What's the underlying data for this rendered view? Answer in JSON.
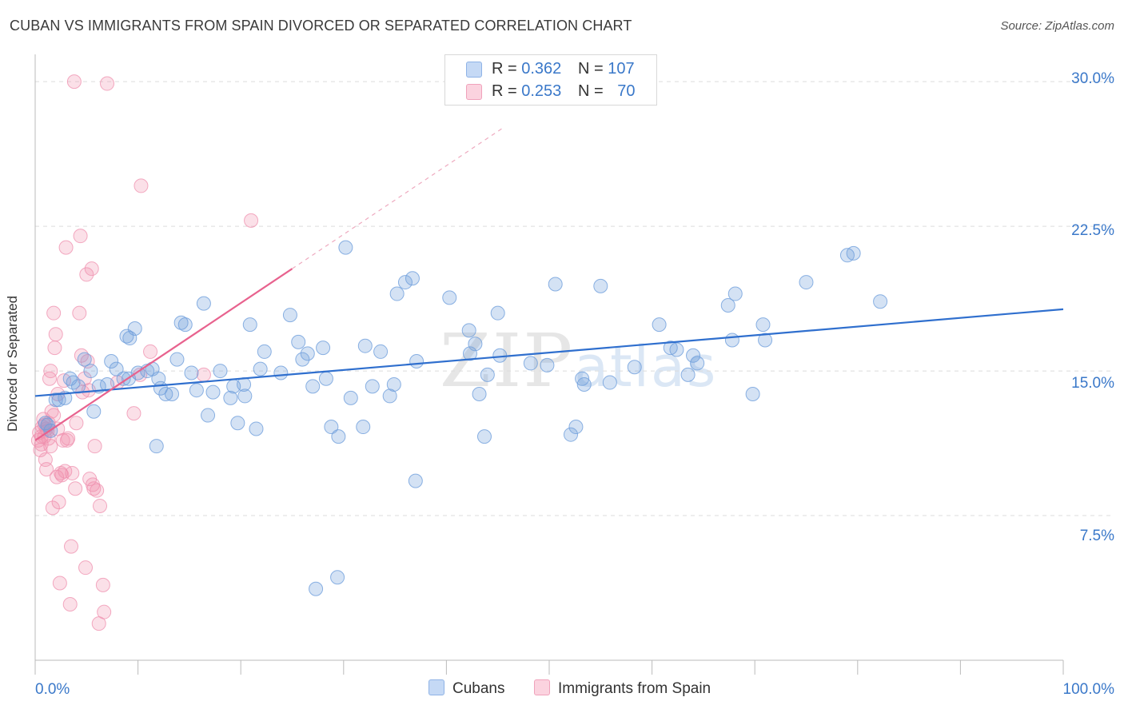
{
  "header": {
    "title": "CUBAN VS IMMIGRANTS FROM SPAIN DIVORCED OR SEPARATED CORRELATION CHART",
    "source": "Source: ZipAtlas.com"
  },
  "legend": {
    "rows": [
      {
        "r_label": "R = ",
        "r_value": "0.362",
        "n_label": "N = ",
        "n_value": "107",
        "color": "#a9c6ee"
      },
      {
        "r_label": "R = ",
        "r_value": "0.253",
        "n_label": "N = ",
        "n_value": "70",
        "color": "#f5b8cc"
      }
    ]
  },
  "bottom_legend": {
    "items": [
      {
        "label": "Cubans",
        "color": "#a9c6ee"
      },
      {
        "label": "Immigrants from Spain",
        "color": "#f5b8cc"
      }
    ]
  },
  "watermark": {
    "zip": "ZIP",
    "atlas": "atlas"
  },
  "chart_data": {
    "type": "scatter",
    "title": "CUBAN VS IMMIGRANTS FROM SPAIN DIVORCED OR SEPARATED CORRELATION CHART",
    "ylabel": "Divorced or Separated",
    "xlabel": "",
    "xlim": [
      0,
      100
    ],
    "ylim": [
      0,
      31
    ],
    "x_tick_labels": [
      "0.0%",
      "100.0%"
    ],
    "y_ticks": [
      7.5,
      15.0,
      22.5,
      30.0
    ],
    "y_tick_labels": [
      "7.5%",
      "15.0%",
      "22.5%",
      "30.0%"
    ],
    "grid": true,
    "legend_position": "top-center",
    "colors": {
      "cubans": "#6f9fdc",
      "spain": "#ef8fae",
      "cubans_line": "#2f6fce",
      "spain_line": "#e8628e"
    },
    "series": [
      {
        "name": "Cubans",
        "trend": {
          "x0": 0,
          "y0": 13.7,
          "x1": 100,
          "y1": 18.2
        },
        "points": [
          [
            1.0,
            12.3
          ],
          [
            1.2,
            12.2
          ],
          [
            1.5,
            11.9
          ],
          [
            2.0,
            13.5
          ],
          [
            2.9,
            13.6
          ],
          [
            3.4,
            14.6
          ],
          [
            3.7,
            14.4
          ],
          [
            4.8,
            15.6
          ],
          [
            5.4,
            15.0
          ],
          [
            5.7,
            12.9
          ],
          [
            6.2,
            14.2
          ],
          [
            7.0,
            14.3
          ],
          [
            7.4,
            15.5
          ],
          [
            7.9,
            15.1
          ],
          [
            8.6,
            14.6
          ],
          [
            8.9,
            16.8
          ],
          [
            9.2,
            16.7
          ],
          [
            9.7,
            17.2
          ],
          [
            10.0,
            14.9
          ],
          [
            10.9,
            15.0
          ],
          [
            11.4,
            15.1
          ],
          [
            11.8,
            11.1
          ],
          [
            12.2,
            14.1
          ],
          [
            12.7,
            13.8
          ],
          [
            13.3,
            13.8
          ],
          [
            13.8,
            15.6
          ],
          [
            14.2,
            17.5
          ],
          [
            14.6,
            17.4
          ],
          [
            15.2,
            14.9
          ],
          [
            15.7,
            14.0
          ],
          [
            16.4,
            18.5
          ],
          [
            16.8,
            12.7
          ],
          [
            17.3,
            13.9
          ],
          [
            18.0,
            15.0
          ],
          [
            19.0,
            13.6
          ],
          [
            19.3,
            14.2
          ],
          [
            19.7,
            12.3
          ],
          [
            20.4,
            13.7
          ],
          [
            20.9,
            17.4
          ],
          [
            21.5,
            12.0
          ],
          [
            21.9,
            15.1
          ],
          [
            22.3,
            16.0
          ],
          [
            23.9,
            14.9
          ],
          [
            24.8,
            17.9
          ],
          [
            25.6,
            16.5
          ],
          [
            26.0,
            15.6
          ],
          [
            26.5,
            15.9
          ],
          [
            27.0,
            14.2
          ],
          [
            28.0,
            16.2
          ],
          [
            28.3,
            14.6
          ],
          [
            28.8,
            12.1
          ],
          [
            29.5,
            11.6
          ],
          [
            29.4,
            4.3
          ],
          [
            30.2,
            21.4
          ],
          [
            30.7,
            13.6
          ],
          [
            32.1,
            16.3
          ],
          [
            31.9,
            12.1
          ],
          [
            32.8,
            14.2
          ],
          [
            33.6,
            16.0
          ],
          [
            34.5,
            13.7
          ],
          [
            34.9,
            14.3
          ],
          [
            35.2,
            19.0
          ],
          [
            36.0,
            19.6
          ],
          [
            36.7,
            19.8
          ],
          [
            37.0,
            9.3
          ],
          [
            37.1,
            15.5
          ],
          [
            40.3,
            18.8
          ],
          [
            42.2,
            17.1
          ],
          [
            42.3,
            15.9
          ],
          [
            42.8,
            16.4
          ],
          [
            43.2,
            13.8
          ],
          [
            43.7,
            11.6
          ],
          [
            44.0,
            14.8
          ],
          [
            45.0,
            18.0
          ],
          [
            45.2,
            15.8
          ],
          [
            48.2,
            15.4
          ],
          [
            49.8,
            15.3
          ],
          [
            50.6,
            19.5
          ],
          [
            52.1,
            11.7
          ],
          [
            52.6,
            12.1
          ],
          [
            53.2,
            14.6
          ],
          [
            53.4,
            14.3
          ],
          [
            55.0,
            19.4
          ],
          [
            55.9,
            14.4
          ],
          [
            58.3,
            15.2
          ],
          [
            60.7,
            17.4
          ],
          [
            61.8,
            16.2
          ],
          [
            62.4,
            16.1
          ],
          [
            63.5,
            14.8
          ],
          [
            64.0,
            15.8
          ],
          [
            64.4,
            15.4
          ],
          [
            67.4,
            18.4
          ],
          [
            67.8,
            16.6
          ],
          [
            68.1,
            19.0
          ],
          [
            69.8,
            13.8
          ],
          [
            70.8,
            17.4
          ],
          [
            71.0,
            16.6
          ],
          [
            75.0,
            19.6
          ],
          [
            79.0,
            21.0
          ],
          [
            79.6,
            21.1
          ],
          [
            82.2,
            18.6
          ],
          [
            27.3,
            3.7
          ],
          [
            20.3,
            14.3
          ],
          [
            12.0,
            14.6
          ],
          [
            9.1,
            14.6
          ],
          [
            4.2,
            14.2
          ],
          [
            2.3,
            13.5
          ]
        ]
      },
      {
        "name": "Immigrants from Spain",
        "trend": {
          "x0": 0,
          "y0": 11.4,
          "x1": 25,
          "y1": 20.3,
          "dash_to": {
            "x": 45.5,
            "y": 27.6
          }
        },
        "points": [
          [
            0.3,
            11.4
          ],
          [
            0.4,
            11.8
          ],
          [
            0.5,
            10.9
          ],
          [
            0.6,
            11.2
          ],
          [
            0.7,
            12.1
          ],
          [
            0.8,
            12.5
          ],
          [
            0.9,
            11.6
          ],
          [
            1.0,
            10.4
          ],
          [
            1.1,
            9.9
          ],
          [
            1.2,
            11.9
          ],
          [
            1.3,
            12.3
          ],
          [
            1.4,
            14.6
          ],
          [
            1.5,
            15.0
          ],
          [
            1.6,
            12.9
          ],
          [
            1.7,
            7.9
          ],
          [
            1.8,
            18.0
          ],
          [
            1.9,
            16.2
          ],
          [
            2.0,
            16.9
          ],
          [
            2.1,
            9.5
          ],
          [
            2.2,
            13.8
          ],
          [
            2.3,
            8.2
          ],
          [
            2.4,
            4.0
          ],
          [
            2.5,
            9.7
          ],
          [
            2.6,
            9.6
          ],
          [
            2.7,
            11.4
          ],
          [
            2.8,
            14.5
          ],
          [
            2.9,
            9.8
          ],
          [
            3.0,
            21.4
          ],
          [
            3.1,
            11.4
          ],
          [
            3.2,
            11.5
          ],
          [
            3.4,
            2.9
          ],
          [
            3.5,
            5.9
          ],
          [
            3.6,
            9.7
          ],
          [
            3.8,
            30.0
          ],
          [
            3.9,
            8.9
          ],
          [
            4.0,
            12.3
          ],
          [
            4.3,
            18.0
          ],
          [
            4.4,
            22.0
          ],
          [
            4.5,
            15.8
          ],
          [
            4.6,
            13.9
          ],
          [
            4.8,
            14.6
          ],
          [
            4.9,
            4.8
          ],
          [
            5.0,
            20.0
          ],
          [
            5.1,
            15.5
          ],
          [
            5.2,
            14.0
          ],
          [
            5.3,
            9.4
          ],
          [
            5.5,
            20.3
          ],
          [
            5.6,
            9.1
          ],
          [
            5.7,
            8.9
          ],
          [
            5.8,
            11.1
          ],
          [
            6.0,
            8.8
          ],
          [
            6.2,
            1.9
          ],
          [
            6.3,
            8.0
          ],
          [
            6.6,
            3.9
          ],
          [
            6.7,
            2.5
          ],
          [
            7.0,
            29.9
          ],
          [
            8.0,
            14.4
          ],
          [
            9.6,
            12.8
          ],
          [
            10.2,
            14.8
          ],
          [
            10.3,
            24.6
          ],
          [
            11.2,
            16.0
          ],
          [
            16.4,
            14.8
          ],
          [
            21.0,
            22.8
          ],
          [
            1.5,
            11.1
          ],
          [
            0.9,
            12.2
          ],
          [
            1.1,
            12.0
          ],
          [
            0.6,
            11.6
          ],
          [
            1.8,
            12.7
          ],
          [
            2.2,
            12.0
          ],
          [
            1.3,
            11.5
          ]
        ]
      }
    ]
  }
}
